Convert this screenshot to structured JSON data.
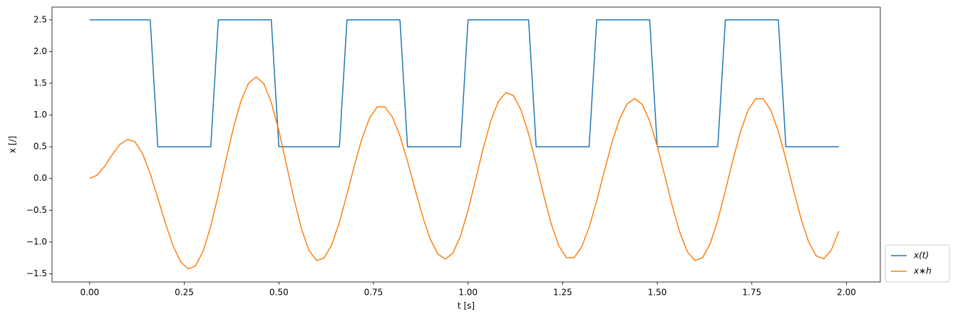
{
  "chart_data": {
    "type": "line",
    "xlabel": "t [s]",
    "ylabel": "x [/]",
    "x": [
      0,
      0.02,
      0.04,
      0.06,
      0.08,
      0.1,
      0.12,
      0.14,
      0.16,
      0.18,
      0.2,
      0.22,
      0.24,
      0.26,
      0.28,
      0.3,
      0.32,
      0.34,
      0.36,
      0.38,
      0.4,
      0.42,
      0.44,
      0.46,
      0.48,
      0.5,
      0.52,
      0.54,
      0.56,
      0.58,
      0.6,
      0.62,
      0.64,
      0.66,
      0.68,
      0.7,
      0.72,
      0.74,
      0.76,
      0.78,
      0.8,
      0.82,
      0.84,
      0.86,
      0.88,
      0.9,
      0.92,
      0.94,
      0.96,
      0.98,
      1,
      1.02,
      1.04,
      1.06,
      1.08,
      1.1,
      1.12,
      1.14,
      1.16,
      1.18,
      1.2,
      1.22,
      1.24,
      1.26,
      1.28,
      1.3,
      1.32,
      1.34,
      1.36,
      1.38,
      1.4,
      1.42,
      1.44,
      1.46,
      1.48,
      1.5,
      1.52,
      1.54,
      1.56,
      1.58,
      1.6,
      1.62,
      1.64,
      1.66,
      1.68,
      1.7,
      1.72,
      1.74,
      1.76,
      1.78,
      1.8,
      1.82,
      1.84,
      1.86,
      1.88,
      1.9,
      1.92,
      1.94,
      1.96,
      1.98
    ],
    "series": [
      {
        "name": "x(t)",
        "color": "#1f77b4",
        "values": [
          2.5,
          2.5,
          2.5,
          2.5,
          2.5,
          2.5,
          2.5,
          2.5,
          2.5,
          0.5,
          0.5,
          0.5,
          0.5,
          0.5,
          0.5,
          0.5,
          0.5,
          2.5,
          2.5,
          2.5,
          2.5,
          2.5,
          2.5,
          2.5,
          2.5,
          0.5,
          0.5,
          0.5,
          0.5,
          0.5,
          0.5,
          0.5,
          0.5,
          0.5,
          2.5,
          2.5,
          2.5,
          2.5,
          2.5,
          2.5,
          2.5,
          2.5,
          0.5,
          0.5,
          0.5,
          0.5,
          0.5,
          0.5,
          0.5,
          0.5,
          2.5,
          2.5,
          2.5,
          2.5,
          2.5,
          2.5,
          2.5,
          2.5,
          2.5,
          0.5,
          0.5,
          0.5,
          0.5,
          0.5,
          0.5,
          0.5,
          0.5,
          2.5,
          2.5,
          2.5,
          2.5,
          2.5,
          2.5,
          2.5,
          2.5,
          0.5,
          0.5,
          0.5,
          0.5,
          0.5,
          0.5,
          0.5,
          0.5,
          0.5,
          2.5,
          2.5,
          2.5,
          2.5,
          2.5,
          2.5,
          2.5,
          2.5,
          0.5,
          0.5,
          0.5,
          0.5,
          0.5,
          0.5,
          0.5,
          0.5
        ]
      },
      {
        "name": "x∗h",
        "color": "#ff7f0e",
        "values": [
          0,
          0.054,
          0.197,
          0.379,
          0.537,
          0.616,
          0.576,
          0.387,
          0.078,
          -0.305,
          -0.702,
          -1.055,
          -1.309,
          -1.425,
          -1.375,
          -1.141,
          -0.75,
          -0.254,
          0.288,
          0.803,
          1.225,
          1.503,
          1.6,
          1.496,
          1.2,
          0.752,
          0.22,
          -0.324,
          -0.8,
          -1.139,
          -1.293,
          -1.25,
          -1.038,
          -0.688,
          -0.249,
          0.213,
          0.637,
          0.955,
          1.128,
          1.129,
          0.969,
          0.67,
          0.272,
          -0.171,
          -0.6,
          -0.953,
          -1.188,
          -1.27,
          -1.175,
          -0.907,
          -0.501,
          -0.018,
          0.475,
          0.906,
          1.214,
          1.354,
          1.306,
          1.079,
          0.703,
          0.232,
          -0.264,
          -0.719,
          -1.061,
          -1.246,
          -1.248,
          -1.08,
          -0.768,
          -0.352,
          0.111,
          0.559,
          0.929,
          1.174,
          1.26,
          1.168,
          0.907,
          0.511,
          0.041,
          -0.439,
          -0.858,
          -1.158,
          -1.294,
          -1.247,
          -1.024,
          -0.655,
          -0.193,
          0.293,
          0.739,
          1.075,
          1.257,
          1.257,
          1.077,
          0.746,
          0.305,
          -0.176,
          -0.633,
          -0.997,
          -1.218,
          -1.265,
          -1.128,
          -0.83
        ]
      }
    ],
    "xlim": [
      -0.0995,
      2.0895
    ],
    "xticks": [
      {
        "value": 0,
        "label": "0.00"
      },
      0.25,
      {
        "value": 0.5,
        "label": "0.50"
      },
      0.75,
      {
        "value": 1,
        "label": "1.00"
      },
      1.25,
      {
        "value": 1.5,
        "label": "1.50"
      },
      1.75,
      {
        "value": 2,
        "label": "2.00"
      }
    ],
    "ylim": [
      -1.63,
      2.7
    ],
    "yticks": [
      {
        "value": -1.5,
        "label": "−1.5"
      },
      {
        "value": -1,
        "label": "−1.0"
      },
      {
        "value": -0.5,
        "label": "−0.5"
      },
      {
        "value": 0,
        "label": "0.0"
      },
      0.5,
      {
        "value": 1,
        "label": "1.0"
      },
      1.5,
      {
        "value": 2,
        "label": "2.0"
      },
      2.5
    ],
    "grid": false,
    "legend": "outside-lower-right"
  }
}
